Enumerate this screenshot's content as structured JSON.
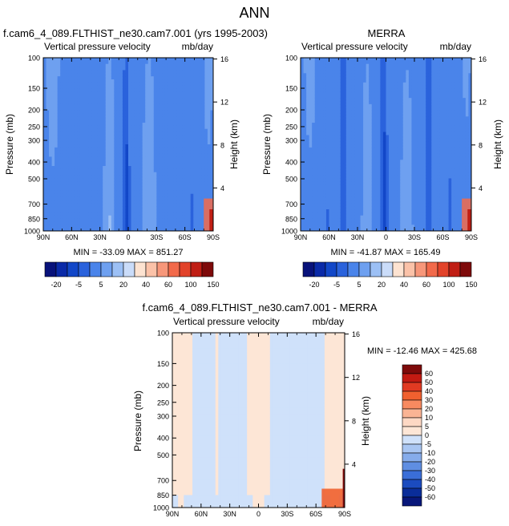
{
  "figure_title": "ANN",
  "chart_data": [
    {
      "type": "heatmap",
      "title_left": "f.cam6_4_089.FLTHIST_ne30.cam7.001 (yrs 1995-2003)",
      "title_right": "",
      "subtitle_left": "Vertical pressure velocity",
      "subtitle_right": "mb/day",
      "xlabel": "",
      "ylabel": "Pressure (mb)",
      "ylabel_right": "Height (km)",
      "x_ticks": [
        "90N",
        "60N",
        "30N",
        "0",
        "30S",
        "60S",
        "90S"
      ],
      "x_tick_lats": [
        90,
        60,
        30,
        0,
        -30,
        -60,
        -90
      ],
      "y_ticks": [
        100,
        150,
        200,
        250,
        300,
        400,
        500,
        700,
        850,
        1000
      ],
      "height_ticks": [
        4,
        8,
        12,
        16
      ],
      "stats": "MIN = -33.09   MAX = 851.27",
      "colorbar_levels": [
        "-20",
        "-5",
        "5",
        "20",
        "40",
        "60",
        "100",
        "150"
      ]
    },
    {
      "type": "heatmap",
      "title_left": "",
      "title_right": "MERRA",
      "subtitle_left": "Vertical pressure velocity",
      "subtitle_right": "mb/day",
      "xlabel": "",
      "ylabel": "Pressure (mb)",
      "ylabel_right": "Height (km)",
      "x_ticks": [
        "90N",
        "60N",
        "30N",
        "0",
        "30S",
        "60S",
        "90S"
      ],
      "x_tick_lats": [
        90,
        60,
        30,
        0,
        -30,
        -60,
        -90
      ],
      "y_ticks": [
        100,
        150,
        200,
        250,
        300,
        400,
        500,
        700,
        850,
        1000
      ],
      "height_ticks": [
        4,
        8,
        12,
        16
      ],
      "stats": "MIN = -41.87   MAX = 165.49",
      "colorbar_levels": [
        "-20",
        "-5",
        "5",
        "20",
        "40",
        "60",
        "100",
        "150"
      ]
    },
    {
      "type": "heatmap",
      "title_left": "f.cam6_4_089.FLTHIST_ne30.cam7.001 - MERRA",
      "subtitle_left": "Vertical pressure velocity",
      "subtitle_right": "mb/day",
      "xlabel": "",
      "ylabel": "Pressure (mb)",
      "ylabel_right": "Height (km)",
      "x_ticks": [
        "90N",
        "60N",
        "30N",
        "0",
        "30S",
        "60S",
        "90S"
      ],
      "x_tick_lats": [
        90,
        60,
        30,
        0,
        -30,
        -60,
        -90
      ],
      "y_ticks": [
        100,
        150,
        200,
        250,
        300,
        400,
        500,
        700,
        850,
        1000
      ],
      "height_ticks": [
        4,
        8,
        12,
        16
      ],
      "stats": "MIN = -12.46   MAX = 425.68",
      "colorbar_levels": [
        "60",
        "50",
        "40",
        "30",
        "20",
        "10",
        "5",
        "0",
        "-5",
        "-10",
        "-20",
        "-30",
        "-40",
        "-50",
        "-60"
      ]
    }
  ],
  "palettes": {
    "main": [
      "#08127a",
      "#0a2aa8",
      "#1247c8",
      "#2a62dc",
      "#4a84ea",
      "#6ea0f0",
      "#9cc0f5",
      "#cadcf9",
      "#fde3d1",
      "#fbc2a8",
      "#f7977a",
      "#f26a4b",
      "#e2432a",
      "#c01e14",
      "#7e0a0a"
    ],
    "diff": [
      "#7e0a0a",
      "#c21a12",
      "#e13a22",
      "#f0602f",
      "#f78a60",
      "#fab494",
      "#fdd8c4",
      "#fde6d6",
      "#cfe1fa",
      "#a9c6f2",
      "#86aceb",
      "#5f8ee2",
      "#3a6ed8",
      "#1b4bbf",
      "#0a2d99",
      "#08177a"
    ]
  }
}
